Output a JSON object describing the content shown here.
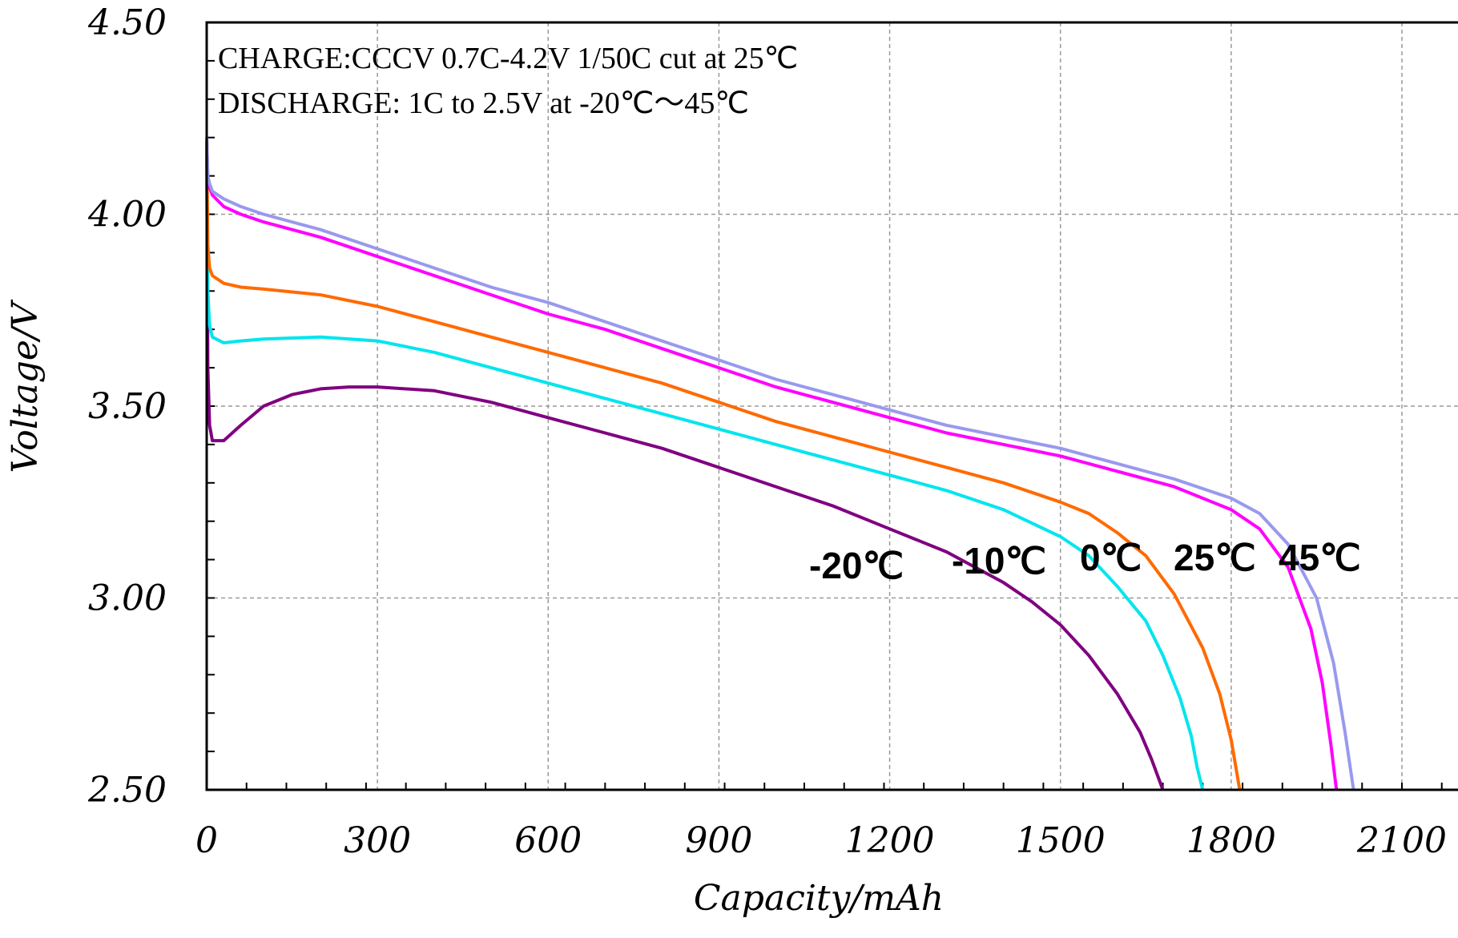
{
  "chart_data": {
    "type": "line",
    "xlabel": "Capacity/mAh",
    "ylabel": "Voltage/V",
    "xlim": [
      0,
      2200
    ],
    "ylim": [
      2.5,
      4.5
    ],
    "x_ticks": [
      0,
      300,
      600,
      900,
      1200,
      1500,
      1800,
      2100
    ],
    "x_tick_labels": [
      "0",
      "300",
      "600",
      "900",
      "1200",
      "1500",
      "1800",
      "2100"
    ],
    "y_ticks": [
      2.5,
      3.0,
      3.5,
      4.0,
      4.5
    ],
    "y_tick_labels": [
      "2.50",
      "3.00",
      "3.50",
      "4.00",
      "4.50"
    ],
    "grid": true,
    "annotations": [
      "CHARGE:CCCV 0.7C-4.2V 1/50C cut at 25℃",
      "DISCHARGE: 1C to 2.5V at -20℃～45℃"
    ],
    "series": [
      {
        "name": "-20℃",
        "color": "#800080",
        "x": [
          0,
          2,
          5,
          10,
          30,
          60,
          100,
          150,
          200,
          250,
          300,
          400,
          500,
          600,
          700,
          800,
          900,
          1000,
          1100,
          1200,
          1300,
          1400,
          1450,
          1500,
          1550,
          1600,
          1640,
          1660,
          1680
        ],
        "y": [
          4.2,
          3.6,
          3.45,
          3.41,
          3.41,
          3.45,
          3.5,
          3.53,
          3.545,
          3.55,
          3.55,
          3.54,
          3.51,
          3.47,
          3.43,
          3.39,
          3.34,
          3.29,
          3.24,
          3.18,
          3.12,
          3.04,
          2.99,
          2.93,
          2.85,
          2.75,
          2.65,
          2.58,
          2.5
        ]
      },
      {
        "name": "-10℃",
        "color": "#00e5ee",
        "x": [
          0,
          2,
          5,
          10,
          30,
          60,
          100,
          200,
          300,
          400,
          500,
          600,
          700,
          800,
          900,
          1000,
          1100,
          1200,
          1300,
          1400,
          1500,
          1550,
          1600,
          1650,
          1680,
          1710,
          1730,
          1740,
          1750
        ],
        "y": [
          4.2,
          3.8,
          3.71,
          3.68,
          3.665,
          3.67,
          3.675,
          3.68,
          3.67,
          3.64,
          3.6,
          3.56,
          3.52,
          3.48,
          3.44,
          3.4,
          3.36,
          3.32,
          3.28,
          3.23,
          3.16,
          3.11,
          3.03,
          2.94,
          2.85,
          2.74,
          2.64,
          2.56,
          2.5
        ]
      },
      {
        "name": "0℃",
        "color": "#ff6a00",
        "x": [
          0,
          2,
          5,
          10,
          30,
          60,
          100,
          200,
          300,
          400,
          500,
          600,
          700,
          800,
          900,
          1000,
          1100,
          1200,
          1300,
          1400,
          1500,
          1550,
          1600,
          1650,
          1700,
          1750,
          1780,
          1800,
          1815
        ],
        "y": [
          4.2,
          3.92,
          3.86,
          3.84,
          3.82,
          3.81,
          3.805,
          3.79,
          3.76,
          3.72,
          3.68,
          3.64,
          3.6,
          3.56,
          3.51,
          3.46,
          3.42,
          3.38,
          3.34,
          3.3,
          3.25,
          3.22,
          3.17,
          3.11,
          3.01,
          2.87,
          2.75,
          2.63,
          2.5
        ]
      },
      {
        "name": "25℃",
        "color": "#ff00ff",
        "x": [
          0,
          2,
          5,
          10,
          30,
          60,
          100,
          200,
          300,
          400,
          500,
          600,
          700,
          800,
          900,
          1000,
          1100,
          1200,
          1300,
          1400,
          1500,
          1600,
          1700,
          1800,
          1850,
          1900,
          1940,
          1960,
          1975,
          1985
        ],
        "y": [
          4.2,
          4.09,
          4.07,
          4.05,
          4.02,
          4.0,
          3.98,
          3.94,
          3.89,
          3.84,
          3.79,
          3.74,
          3.7,
          3.65,
          3.6,
          3.55,
          3.51,
          3.47,
          3.43,
          3.4,
          3.37,
          3.33,
          3.29,
          3.23,
          3.18,
          3.08,
          2.92,
          2.78,
          2.62,
          2.5
        ]
      },
      {
        "name": "45℃",
        "color": "#9999ee",
        "x": [
          0,
          2,
          5,
          10,
          30,
          60,
          100,
          200,
          300,
          400,
          500,
          600,
          700,
          800,
          900,
          1000,
          1100,
          1200,
          1300,
          1400,
          1500,
          1600,
          1700,
          1800,
          1850,
          1900,
          1950,
          1980,
          2000,
          2015
        ],
        "y": [
          4.2,
          4.1,
          4.08,
          4.06,
          4.04,
          4.02,
          4.0,
          3.96,
          3.91,
          3.86,
          3.81,
          3.77,
          3.72,
          3.67,
          3.62,
          3.57,
          3.53,
          3.49,
          3.45,
          3.42,
          3.39,
          3.35,
          3.31,
          3.26,
          3.22,
          3.14,
          3.0,
          2.83,
          2.65,
          2.5
        ]
      }
    ]
  }
}
